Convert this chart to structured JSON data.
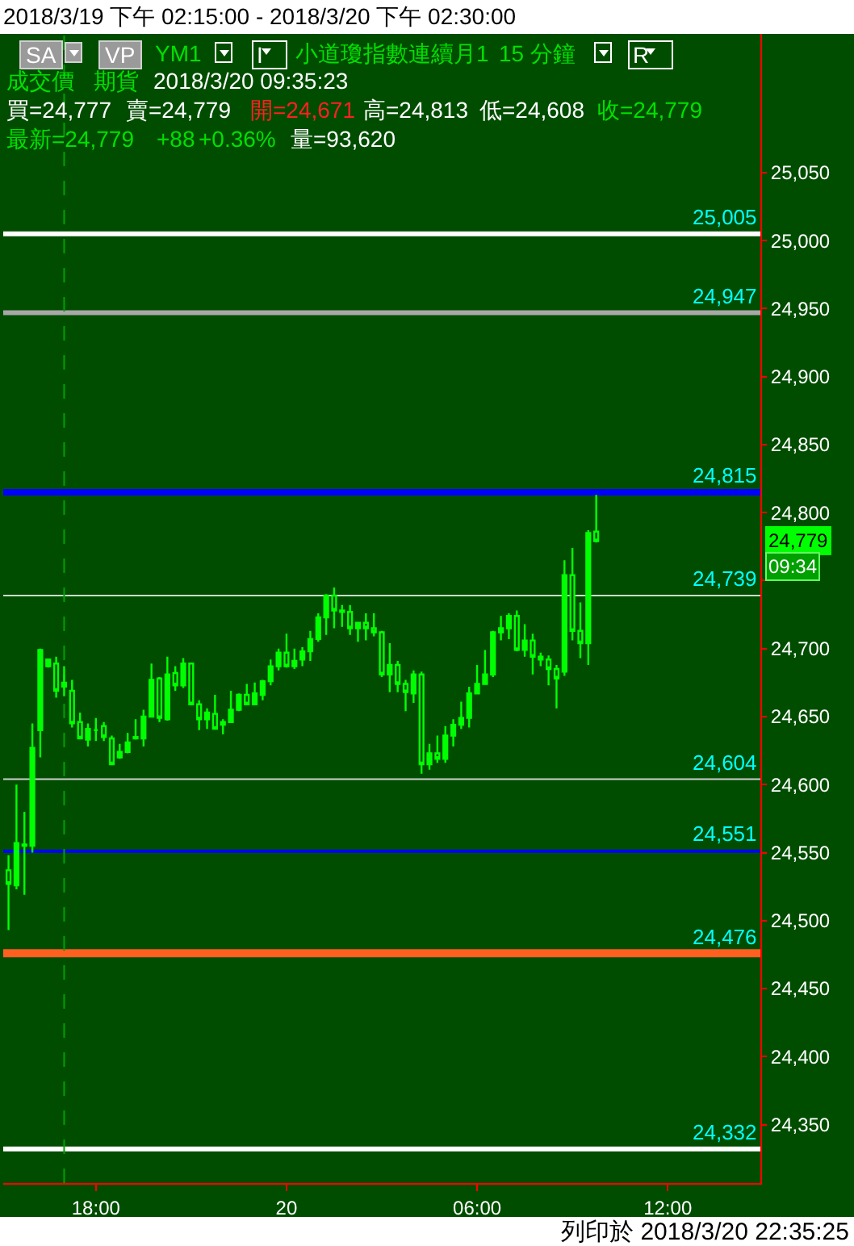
{
  "chart_data": {
    "type": "candlestick",
    "title": "2018/3/19 下午 02:15:00 - 2018/3/20 下午 02:30:00",
    "annotations": [
      "SA",
      "VP",
      "YM1",
      "I",
      "小道瓊指數連續月1",
      "15 分鐘",
      "R",
      "成交價",
      "期貨",
      "2018/3/20  09:35:23",
      "買=24,777",
      "賣=24,779",
      "開=24,671",
      "高=24,813",
      "低=24,608",
      "收=24,779",
      "最新=24,779",
      "+88",
      "+0.36%",
      "量=93,620",
      "列印於 2018/3/20 22:35:25",
      "24,779",
      "09:34"
    ],
    "color": "#00ff00",
    "x": [
      "2018-03-19T15:15",
      "2018-03-19T15:30",
      "2018-03-19T15:45",
      "2018-03-19T16:00",
      "2018-03-19T16:15",
      "2018-03-19T16:30",
      "2018-03-19T16:45",
      "2018-03-19T17:00",
      "2018-03-19T17:15",
      "2018-03-19T17:30",
      "2018-03-19T17:45",
      "2018-03-19T18:00",
      "2018-03-19T18:15",
      "2018-03-19T18:30",
      "2018-03-19T18:45",
      "2018-03-19T19:00",
      "2018-03-19T19:15",
      "2018-03-19T19:30",
      "2018-03-19T19:45",
      "2018-03-19T20:00",
      "2018-03-19T20:15",
      "2018-03-19T20:30",
      "2018-03-19T20:45",
      "2018-03-19T21:00",
      "2018-03-19T21:15",
      "2018-03-19T21:30",
      "2018-03-19T21:45",
      "2018-03-19T22:00",
      "2018-03-19T22:15",
      "2018-03-19T22:30",
      "2018-03-19T22:45",
      "2018-03-19T23:00",
      "2018-03-19T23:15",
      "2018-03-19T23:30",
      "2018-03-19T23:45",
      "2018-03-20T00:00",
      "2018-03-20T00:15",
      "2018-03-20T00:30",
      "2018-03-20T00:45",
      "2018-03-20T01:00",
      "2018-03-20T01:15",
      "2018-03-20T01:30",
      "2018-03-20T01:45",
      "2018-03-20T02:00",
      "2018-03-20T02:15",
      "2018-03-20T02:30",
      "2018-03-20T02:45",
      "2018-03-20T03:00",
      "2018-03-20T03:15",
      "2018-03-20T03:30",
      "2018-03-20T03:45",
      "2018-03-20T04:00",
      "2018-03-20T04:15",
      "2018-03-20T04:30",
      "2018-03-20T04:45",
      "2018-03-20T05:00",
      "2018-03-20T05:15",
      "2018-03-20T05:30",
      "2018-03-20T05:45",
      "2018-03-20T06:00",
      "2018-03-20T06:15",
      "2018-03-20T06:30",
      "2018-03-20T06:45",
      "2018-03-20T07:00",
      "2018-03-20T07:15",
      "2018-03-20T07:30",
      "2018-03-20T07:45",
      "2018-03-20T08:00",
      "2018-03-20T08:15",
      "2018-03-20T08:30",
      "2018-03-20T08:45",
      "2018-03-20T09:00",
      "2018-03-20T09:15",
      "2018-03-20T09:30",
      "2018-03-20T09:45"
    ],
    "ohlc": [
      [
        24537,
        24548,
        24493,
        24527
      ],
      [
        24526,
        24600,
        24523,
        24557
      ],
      [
        24556,
        24580,
        24519,
        24555
      ],
      [
        24555,
        24645,
        24550,
        24627
      ],
      [
        24640,
        24700,
        24620,
        24699
      ],
      [
        24687,
        24692,
        24686,
        24692
      ],
      [
        24689,
        24694,
        24664,
        24669
      ],
      [
        24672,
        24687,
        24665,
        24675
      ],
      [
        24669,
        24677,
        24642,
        24645
      ],
      [
        24646,
        24653,
        24634,
        24634
      ],
      [
        24633,
        24645,
        24628,
        24641
      ],
      [
        24640,
        24649,
        24632,
        24640
      ],
      [
        24643,
        24646,
        24632,
        24635
      ],
      [
        24634,
        24636,
        24615,
        24615
      ],
      [
        24620,
        24630,
        24619,
        24624
      ],
      [
        24624,
        24638,
        24623,
        24631
      ],
      [
        24635,
        24648,
        24633,
        24634
      ],
      [
        24634,
        24655,
        24628,
        24650
      ],
      [
        24650,
        24689,
        24650,
        24677
      ],
      [
        24678,
        24679,
        24646,
        24649
      ],
      [
        24648,
        24694,
        24647,
        24681
      ],
      [
        24682,
        24687,
        24669,
        24673
      ],
      [
        24673,
        24693,
        24671,
        24689
      ],
      [
        24689,
        24689,
        24659,
        24659
      ],
      [
        24659,
        24662,
        24640,
        24648
      ],
      [
        24648,
        24656,
        24641,
        24653
      ],
      [
        24652,
        24666,
        24641,
        24641
      ],
      [
        24644,
        24648,
        24637,
        24646
      ],
      [
        24646,
        24669,
        24646,
        24655
      ],
      [
        24655,
        24667,
        24654,
        24666
      ],
      [
        24666,
        24674,
        24659,
        24659
      ],
      [
        24659,
        24675,
        24659,
        24667
      ],
      [
        24666,
        24677,
        24662,
        24676
      ],
      [
        24676,
        24692,
        24673,
        24687
      ],
      [
        24687,
        24700,
        24684,
        24697
      ],
      [
        24697,
        24711,
        24686,
        24687
      ],
      [
        24687,
        24700,
        24685,
        24691
      ],
      [
        24692,
        24701,
        24687,
        24698
      ],
      [
        24698,
        24713,
        24691,
        24707
      ],
      [
        24707,
        24726,
        24705,
        24723
      ],
      [
        24723,
        24740,
        24710,
        24739
      ],
      [
        24739,
        24745,
        24715,
        24728
      ],
      [
        24728,
        24732,
        24716,
        24727
      ],
      [
        24727,
        24732,
        24710,
        24715
      ],
      [
        24715,
        24719,
        24705,
        24719
      ],
      [
        24719,
        24726,
        24706,
        24715
      ],
      [
        24715,
        24726,
        24709,
        24712
      ],
      [
        24712,
        24713,
        24679,
        24681
      ],
      [
        24681,
        24704,
        24668,
        24688
      ],
      [
        24688,
        24691,
        24668,
        24674
      ],
      [
        24674,
        24677,
        24654,
        24668
      ],
      [
        24667,
        24684,
        24660,
        24681
      ],
      [
        24681,
        24683,
        24608,
        24615
      ],
      [
        24615,
        24630,
        24611,
        24623
      ],
      [
        24623,
        24636,
        24616,
        24619
      ],
      [
        24619,
        24643,
        24616,
        24636
      ],
      [
        24636,
        24648,
        24628,
        24644
      ],
      [
        24644,
        24661,
        24641,
        24649
      ],
      [
        24649,
        24672,
        24642,
        24667
      ],
      [
        24667,
        24688,
        24667,
        24674
      ],
      [
        24674,
        24699,
        24674,
        24681
      ],
      [
        24681,
        24713,
        24679,
        24712
      ],
      [
        24712,
        24724,
        24706,
        24715
      ],
      [
        24715,
        24726,
        24707,
        24724
      ],
      [
        24724,
        24728,
        24698,
        24699
      ],
      [
        24699,
        24718,
        24694,
        24706
      ],
      [
        24706,
        24711,
        24681,
        24694
      ],
      [
        24694,
        24697,
        24687,
        24692
      ],
      [
        24692,
        24695,
        24673,
        24685
      ],
      [
        24685,
        24688,
        24656,
        24678
      ],
      [
        24683,
        24765,
        24680,
        24754
      ],
      [
        24754,
        24774,
        24706,
        24713
      ],
      [
        24713,
        24734,
        24693,
        24704
      ],
      [
        24704,
        24787,
        24688,
        24785
      ],
      [
        24786,
        24813,
        24778,
        24779
      ]
    ],
    "xlim": [
      "2018-03-19T15:05",
      "2018-03-20T14:55"
    ],
    "xticks": [
      {
        "value": "2018-03-19T18:00",
        "label": "18:00"
      },
      {
        "value": "2018-03-20T00:00",
        "label": "20"
      },
      {
        "value": "2018-03-20T06:00",
        "label": "06:00"
      },
      {
        "value": "2018-03-20T12:00",
        "label": "12:00"
      }
    ],
    "ylim": [
      24307,
      25152
    ],
    "yticks": [
      {
        "value": 24350,
        "label": "24,350"
      },
      {
        "value": 24400,
        "label": "24,400"
      },
      {
        "value": 24450,
        "label": "24,450"
      },
      {
        "value": 24500,
        "label": "24,500"
      },
      {
        "value": 24550,
        "label": "24,550"
      },
      {
        "value": 24600,
        "label": "24,600"
      },
      {
        "value": 24650,
        "label": "24,650"
      },
      {
        "value": 24700,
        "label": "24,700"
      },
      {
        "value": 24750,
        "label": null
      },
      {
        "value": 24800,
        "label": "24,800"
      },
      {
        "value": 24850,
        "label": "24,850"
      },
      {
        "value": 24900,
        "label": "24,900"
      },
      {
        "value": 24950,
        "label": "24,950"
      },
      {
        "value": 25000,
        "label": "25,000"
      },
      {
        "value": 25050,
        "label": "25,050"
      }
    ],
    "ref_lines": [
      {
        "axis": "y",
        "value": 25005,
        "label": "25,005",
        "color": "#ffffff"
      },
      {
        "axis": "y",
        "value": 24947,
        "label": "24,947",
        "color": "#a8a8a8"
      },
      {
        "axis": "y",
        "value": 24815,
        "label": "24,815",
        "color": "#0000ff"
      },
      {
        "axis": "y",
        "value": 24739,
        "label": "24,739",
        "color": "#c8dcc8"
      },
      {
        "axis": "y",
        "value": 24604,
        "label": "24,604",
        "color": "#d0d0d0"
      },
      {
        "axis": "y",
        "value": 24551,
        "label": "24,551",
        "color": "#0000ff"
      },
      {
        "axis": "y",
        "value": 24476,
        "label": "24,476",
        "color": "#ff6020"
      },
      {
        "axis": "y",
        "value": 24332,
        "label": "24,332",
        "color": "#ffffff"
      },
      {
        "axis": "x",
        "value": "2018-03-19T17:00",
        "color": "#00a000",
        "line_style": "dashed"
      }
    ]
  }
}
